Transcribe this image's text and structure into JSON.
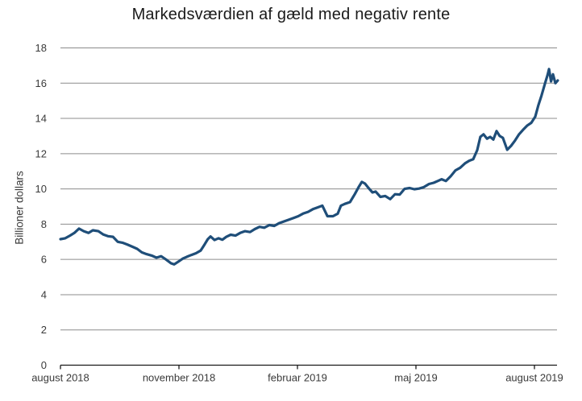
{
  "title": "Markedsværdien af gæld med negativ rente",
  "colors": {
    "line": "#1f4e79",
    "grid": "#8c8c8c",
    "axis": "#1a1a1a",
    "text": "#3a3a3a",
    "background": "#ffffff"
  },
  "chart_data": {
    "type": "line",
    "title": "Markedsværdien af gæld med negativ rente",
    "xlabel": "",
    "ylabel": "Billioner dollars",
    "ylim": [
      0,
      18
    ],
    "y_ticks": [
      0,
      2,
      4,
      6,
      8,
      10,
      12,
      14,
      16,
      18
    ],
    "x_range_months": [
      0,
      12.6
    ],
    "x_ticks": [
      {
        "m": 0,
        "label": "august 2018"
      },
      {
        "m": 3,
        "label": "november 2018"
      },
      {
        "m": 6,
        "label": "februar 2019"
      },
      {
        "m": 9,
        "label": "maj 2019"
      },
      {
        "m": 12,
        "label": "august 2019"
      }
    ],
    "grid": "horizontal",
    "legend": "none",
    "series": [
      {
        "name": "Markedsværdi af gæld med negativ rente (billioner dollars)",
        "color": "#1f4e79",
        "points": [
          [
            0.0,
            7.15
          ],
          [
            0.12,
            7.2
          ],
          [
            0.24,
            7.35
          ],
          [
            0.35,
            7.5
          ],
          [
            0.47,
            7.75
          ],
          [
            0.59,
            7.6
          ],
          [
            0.71,
            7.5
          ],
          [
            0.82,
            7.65
          ],
          [
            0.96,
            7.6
          ],
          [
            1.08,
            7.42
          ],
          [
            1.2,
            7.32
          ],
          [
            1.33,
            7.28
          ],
          [
            1.45,
            7.0
          ],
          [
            1.57,
            6.95
          ],
          [
            1.69,
            6.85
          ],
          [
            1.82,
            6.72
          ],
          [
            1.94,
            6.6
          ],
          [
            2.06,
            6.4
          ],
          [
            2.18,
            6.3
          ],
          [
            2.31,
            6.22
          ],
          [
            2.43,
            6.1
          ],
          [
            2.55,
            6.18
          ],
          [
            2.67,
            6.0
          ],
          [
            2.8,
            5.78
          ],
          [
            2.88,
            5.72
          ],
          [
            3.0,
            5.9
          ],
          [
            3.1,
            6.05
          ],
          [
            3.2,
            6.15
          ],
          [
            3.31,
            6.25
          ],
          [
            3.43,
            6.35
          ],
          [
            3.55,
            6.5
          ],
          [
            3.65,
            6.85
          ],
          [
            3.73,
            7.15
          ],
          [
            3.8,
            7.3
          ],
          [
            3.9,
            7.1
          ],
          [
            4.0,
            7.2
          ],
          [
            4.1,
            7.12
          ],
          [
            4.2,
            7.28
          ],
          [
            4.31,
            7.4
          ],
          [
            4.43,
            7.35
          ],
          [
            4.55,
            7.5
          ],
          [
            4.67,
            7.6
          ],
          [
            4.8,
            7.55
          ],
          [
            4.92,
            7.72
          ],
          [
            5.04,
            7.85
          ],
          [
            5.16,
            7.8
          ],
          [
            5.29,
            7.95
          ],
          [
            5.41,
            7.9
          ],
          [
            5.53,
            8.05
          ],
          [
            5.65,
            8.15
          ],
          [
            5.78,
            8.25
          ],
          [
            5.9,
            8.35
          ],
          [
            6.02,
            8.45
          ],
          [
            6.14,
            8.6
          ],
          [
            6.27,
            8.7
          ],
          [
            6.39,
            8.85
          ],
          [
            6.51,
            8.95
          ],
          [
            6.63,
            9.05
          ],
          [
            6.76,
            8.45
          ],
          [
            6.9,
            8.45
          ],
          [
            7.02,
            8.6
          ],
          [
            7.1,
            9.05
          ],
          [
            7.2,
            9.15
          ],
          [
            7.33,
            9.25
          ],
          [
            7.45,
            9.7
          ],
          [
            7.55,
            10.1
          ],
          [
            7.63,
            10.4
          ],
          [
            7.71,
            10.3
          ],
          [
            7.8,
            10.05
          ],
          [
            7.9,
            9.8
          ],
          [
            7.98,
            9.85
          ],
          [
            8.1,
            9.55
          ],
          [
            8.22,
            9.6
          ],
          [
            8.35,
            9.42
          ],
          [
            8.47,
            9.7
          ],
          [
            8.59,
            9.68
          ],
          [
            8.71,
            10.0
          ],
          [
            8.84,
            10.05
          ],
          [
            8.96,
            9.98
          ],
          [
            9.08,
            10.02
          ],
          [
            9.2,
            10.1
          ],
          [
            9.33,
            10.28
          ],
          [
            9.45,
            10.35
          ],
          [
            9.55,
            10.45
          ],
          [
            9.65,
            10.55
          ],
          [
            9.76,
            10.45
          ],
          [
            9.88,
            10.72
          ],
          [
            10.0,
            11.05
          ],
          [
            10.12,
            11.2
          ],
          [
            10.24,
            11.45
          ],
          [
            10.35,
            11.6
          ],
          [
            10.45,
            11.68
          ],
          [
            10.55,
            12.2
          ],
          [
            10.63,
            12.95
          ],
          [
            10.71,
            13.1
          ],
          [
            10.8,
            12.85
          ],
          [
            10.88,
            12.95
          ],
          [
            10.96,
            12.8
          ],
          [
            11.04,
            13.28
          ],
          [
            11.12,
            13.0
          ],
          [
            11.2,
            12.9
          ],
          [
            11.31,
            12.22
          ],
          [
            11.41,
            12.45
          ],
          [
            11.51,
            12.75
          ],
          [
            11.61,
            13.1
          ],
          [
            11.71,
            13.35
          ],
          [
            11.82,
            13.6
          ],
          [
            11.92,
            13.75
          ],
          [
            12.02,
            14.1
          ],
          [
            12.1,
            14.75
          ],
          [
            12.18,
            15.3
          ],
          [
            12.27,
            16.0
          ],
          [
            12.33,
            16.45
          ],
          [
            12.37,
            16.8
          ],
          [
            12.42,
            16.1
          ],
          [
            12.47,
            16.5
          ],
          [
            12.53,
            16.0
          ],
          [
            12.59,
            16.15
          ]
        ]
      }
    ]
  }
}
